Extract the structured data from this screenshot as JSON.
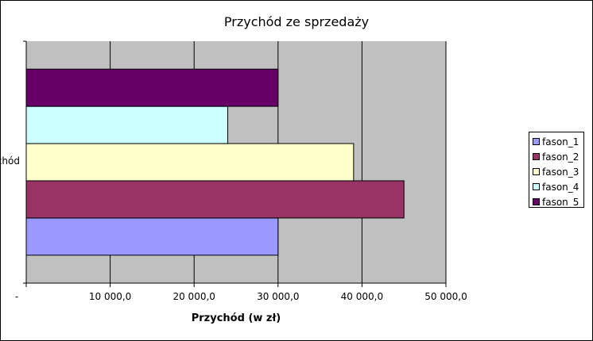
{
  "chart_data": {
    "type": "bar",
    "orientation": "horizontal",
    "title": "Przychód ze sprzedaży",
    "xlabel": "Przychód (w zł)",
    "category_label": "Przychód",
    "xlim": [
      0,
      50000
    ],
    "xticks": [
      0,
      10000,
      20000,
      30000,
      40000,
      50000
    ],
    "xtick_labels": [
      "-",
      "10 000,0",
      "20 000,0",
      "30 000,0",
      "40 000,0",
      "50 000,0"
    ],
    "grid": true,
    "legend_position": "right",
    "plot_background": "#c0c0c0",
    "series": [
      {
        "name": "fason_1",
        "value": 30000,
        "color": "#9999ff"
      },
      {
        "name": "fason_2",
        "value": 45000,
        "color": "#993366"
      },
      {
        "name": "fason_3",
        "value": 39000,
        "color": "#ffffcc"
      },
      {
        "name": "fason_4",
        "value": 24000,
        "color": "#ccffff"
      },
      {
        "name": "fason_5",
        "value": 30000,
        "color": "#660066"
      }
    ]
  }
}
